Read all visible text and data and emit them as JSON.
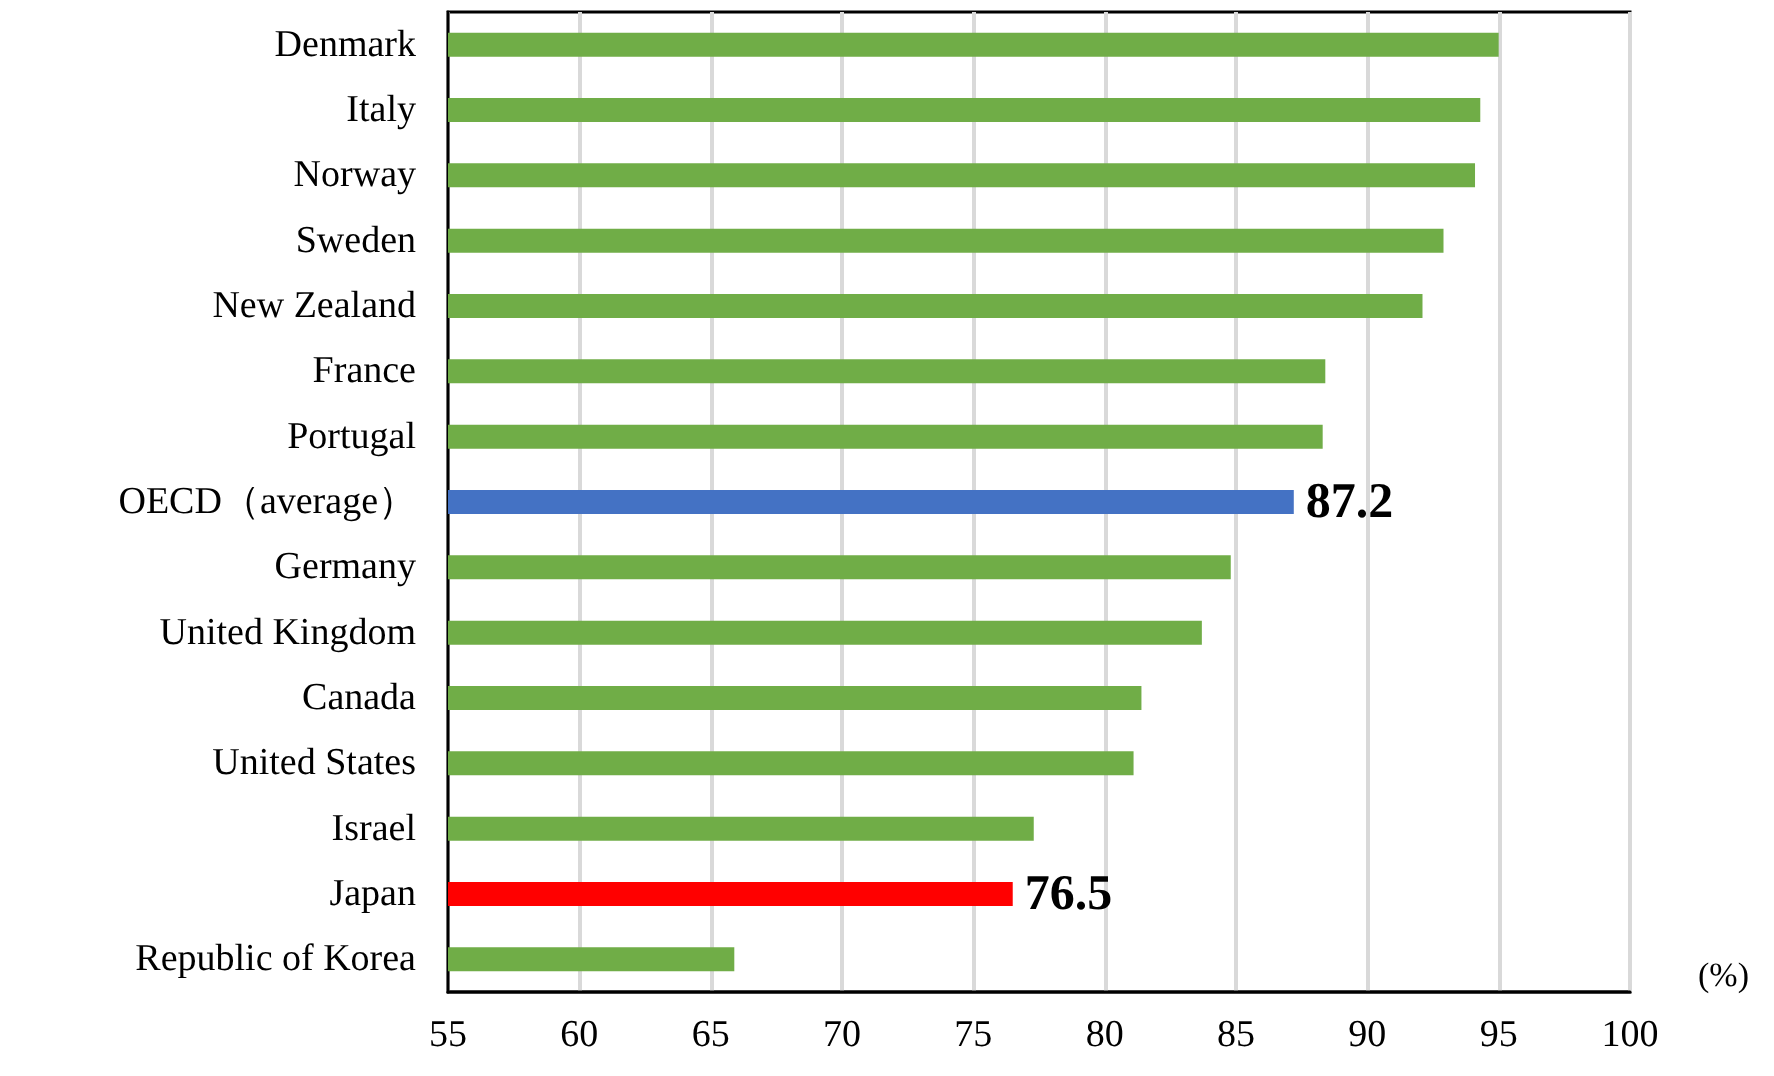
{
  "chart_data": {
    "type": "bar",
    "orientation": "horizontal",
    "xlabel": "(%)",
    "categories": [
      "Denmark",
      "Italy",
      "Norway",
      "Sweden",
      "New Zealand",
      "France",
      "Portugal",
      "OECD（average）",
      "Germany",
      "United Kingdom",
      "Canada",
      "United States",
      "Israel",
      "Japan",
      "Republic of Korea"
    ],
    "values": [
      95.0,
      94.3,
      94.1,
      92.9,
      92.1,
      88.4,
      88.3,
      87.2,
      84.8,
      83.7,
      81.4,
      81.1,
      77.3,
      76.5,
      65.9
    ],
    "colors": [
      "#70ad47",
      "#70ad47",
      "#70ad47",
      "#70ad47",
      "#70ad47",
      "#70ad47",
      "#70ad47",
      "#4472c4",
      "#70ad47",
      "#70ad47",
      "#70ad47",
      "#70ad47",
      "#70ad47",
      "#ff0000",
      "#70ad47"
    ],
    "value_labels": [
      null,
      null,
      null,
      null,
      null,
      null,
      null,
      "87.2",
      null,
      null,
      null,
      null,
      null,
      "76.5",
      null
    ],
    "xlim": [
      55,
      100
    ],
    "xticks": [
      55,
      60,
      65,
      70,
      75,
      80,
      85,
      90,
      95,
      100
    ],
    "grid": "x"
  }
}
